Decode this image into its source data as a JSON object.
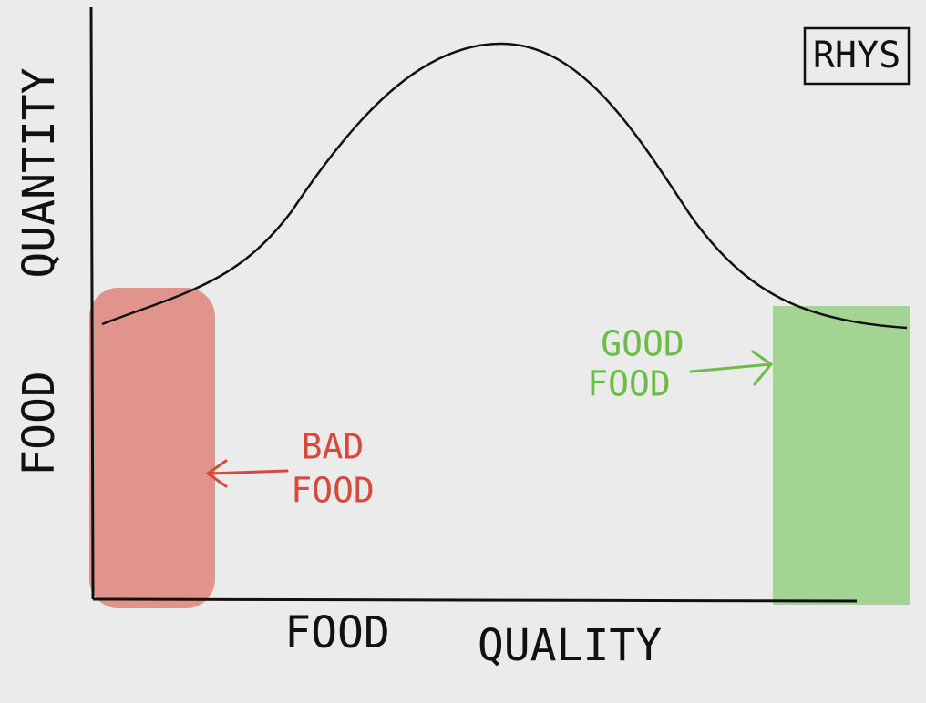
{
  "signature": "RHYS",
  "y_axis": {
    "lines": [
      "FOOD",
      "QUANTITY"
    ]
  },
  "x_axis": {
    "lines": [
      "FOOD",
      "QUALITY"
    ]
  },
  "annotations": [
    {
      "lines": [
        "BAD",
        "FOOD"
      ]
    },
    {
      "lines": [
        "GOOD",
        "FOOD"
      ]
    }
  ]
}
